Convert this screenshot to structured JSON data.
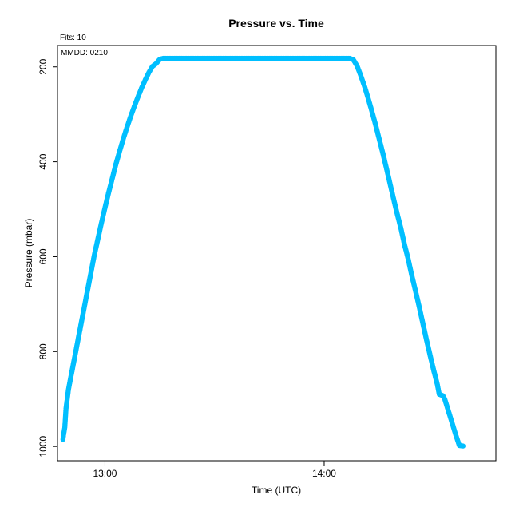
{
  "chart_data": {
    "type": "scatter",
    "title": "Pressure  vs. Time",
    "xlabel": "Time (UTC)",
    "ylabel": "Pressure (mbar)",
    "fits_label": "Fits: 10",
    "date_label": "MMDD: 0210",
    "x_ticks": [
      "13:00",
      "14:00"
    ],
    "y_ticks": [
      "200",
      "400",
      "600",
      "800",
      "1000"
    ],
    "y_inverted": true,
    "xlim": [
      "12:47",
      "14:47"
    ],
    "ylim": [
      1030,
      155
    ],
    "grid": false,
    "legend": "none",
    "marker_color": "#00BFFF",
    "series": [
      {
        "points": [
          [
            "12:48:30",
            985
          ],
          [
            "12:48:40",
            975
          ],
          [
            "12:49:00",
            960
          ],
          [
            "12:49:10",
            940
          ],
          [
            "12:49:20",
            920
          ],
          [
            "12:49:40",
            900
          ],
          [
            "12:50:00",
            880
          ],
          [
            "12:50:30",
            860
          ],
          [
            "12:51:00",
            840
          ],
          [
            "12:52:00",
            800
          ],
          [
            "12:53:00",
            760
          ],
          [
            "12:54:00",
            720
          ],
          [
            "12:55:00",
            680
          ],
          [
            "12:56:00",
            640
          ],
          [
            "12:57:00",
            600
          ],
          [
            "12:58:00",
            565
          ],
          [
            "12:59:00",
            530
          ],
          [
            "13:00:00",
            497
          ],
          [
            "13:01:00",
            465
          ],
          [
            "13:02:00",
            435
          ],
          [
            "13:03:00",
            405
          ],
          [
            "13:04:00",
            378
          ],
          [
            "13:05:00",
            352
          ],
          [
            "13:06:00",
            328
          ],
          [
            "13:07:00",
            305
          ],
          [
            "13:08:00",
            284
          ],
          [
            "13:09:00",
            264
          ],
          [
            "13:10:00",
            245
          ],
          [
            "13:11:00",
            228
          ],
          [
            "13:12:00",
            212
          ],
          [
            "13:13:00",
            199
          ],
          [
            "13:14:00",
            193
          ],
          [
            "13:15:00",
            184
          ],
          [
            "13:16:00",
            182
          ],
          [
            "13:30:00",
            182
          ],
          [
            "13:45:00",
            182
          ],
          [
            "14:00:00",
            182
          ],
          [
            "14:07:00",
            182
          ],
          [
            "14:08:00",
            185
          ],
          [
            "14:09:00",
            198
          ],
          [
            "14:10:00",
            218
          ],
          [
            "14:11:00",
            240
          ],
          [
            "14:12:00",
            265
          ],
          [
            "14:13:00",
            292
          ],
          [
            "14:14:00",
            320
          ],
          [
            "14:15:00",
            350
          ],
          [
            "14:16:00",
            380
          ],
          [
            "14:17:00",
            412
          ],
          [
            "14:18:00",
            445
          ],
          [
            "14:19:00",
            478
          ],
          [
            "14:20:00",
            510
          ],
          [
            "14:21:00",
            540
          ],
          [
            "14:22:00",
            575
          ],
          [
            "14:23:00",
            605
          ],
          [
            "14:24:00",
            640
          ],
          [
            "14:25:00",
            672
          ],
          [
            "14:26:00",
            705
          ],
          [
            "14:27:00",
            740
          ],
          [
            "14:28:00",
            775
          ],
          [
            "14:29:00",
            808
          ],
          [
            "14:30:00",
            840
          ],
          [
            "14:31:00",
            870
          ],
          [
            "14:31:30",
            890
          ],
          [
            "14:32:30",
            893
          ],
          [
            "14:33:00",
            900
          ],
          [
            "14:34:00",
            925
          ],
          [
            "14:35:00",
            950
          ],
          [
            "14:36:00",
            975
          ],
          [
            "14:37:00",
            998
          ],
          [
            "14:38:00",
            999
          ]
        ]
      }
    ]
  }
}
